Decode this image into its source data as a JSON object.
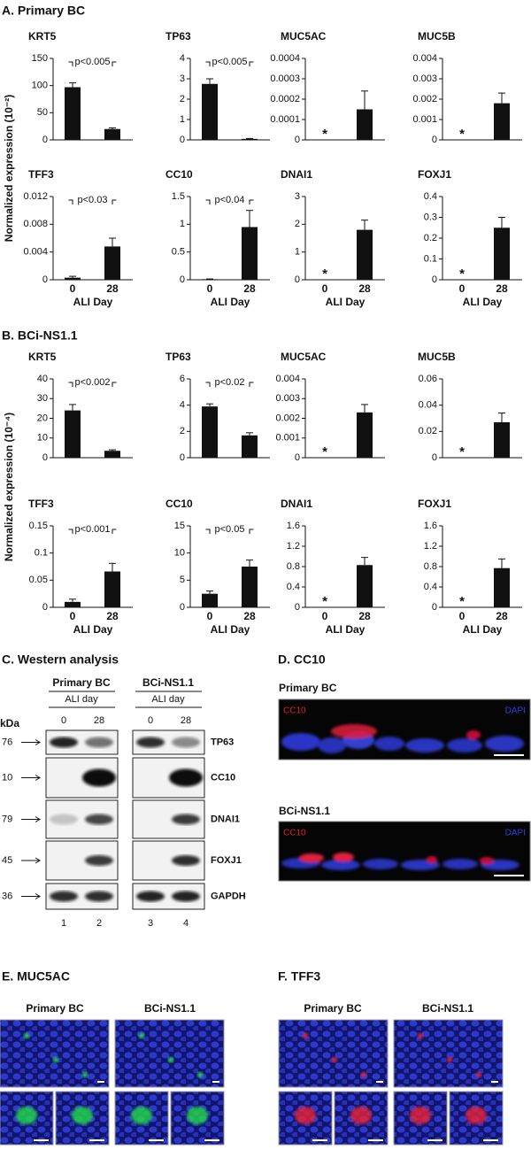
{
  "chart_data": [
    {
      "type": "bar",
      "title": "KRT5",
      "categories": [
        null,
        null
      ],
      "values": [
        97,
        20
      ],
      "errors": [
        8,
        2
      ],
      "ylim": [
        0,
        150
      ],
      "yticks": [
        0,
        50,
        100,
        150
      ],
      "color": "#111111",
      "bracket_label": "p<0.005"
    },
    {
      "type": "bar",
      "title": "TP63",
      "categories": [
        null,
        null
      ],
      "values": [
        2.75,
        0.05
      ],
      "errors": [
        0.25,
        0.02
      ],
      "ylim": [
        0,
        4
      ],
      "yticks": [
        0,
        1,
        2,
        3,
        4
      ],
      "color": "#111111",
      "bracket_label": "p<0.005"
    },
    {
      "type": "bar",
      "title": "MUC5AC",
      "categories": [
        null,
        null
      ],
      "values": [
        0,
        0.00015
      ],
      "errors": [
        0,
        9e-05
      ],
      "ylim": [
        0,
        0.0004
      ],
      "yticks": [
        0,
        0.0001,
        0.0002,
        0.0003,
        0.0004
      ],
      "color": "#111111",
      "star_label": "*"
    },
    {
      "type": "bar",
      "title": "MUC5B",
      "categories": [
        null,
        null
      ],
      "values": [
        0,
        0.0018
      ],
      "errors": [
        0,
        0.0005
      ],
      "ylim": [
        0,
        0.004
      ],
      "yticks": [
        0,
        0.001,
        0.002,
        0.003,
        0.004
      ],
      "color": "#111111",
      "star_label": "*"
    },
    {
      "type": "bar",
      "title": "TFF3",
      "categories": [
        "0",
        "28"
      ],
      "xlabel": "ALI Day",
      "values": [
        0.0003,
        0.0048
      ],
      "errors": [
        0.0002,
        0.0012
      ],
      "ylim": [
        0,
        0.012
      ],
      "yticks": [
        0,
        0.004,
        0.008,
        0.012
      ],
      "color": "#111111",
      "bracket_label": "p<0.03"
    },
    {
      "type": "bar",
      "title": "CC10",
      "categories": [
        "0",
        "28"
      ],
      "xlabel": "ALI Day",
      "values": [
        0.01,
        0.95
      ],
      "errors": [
        0.005,
        0.3
      ],
      "ylim": [
        0,
        1.5
      ],
      "yticks": [
        0,
        0.5,
        1,
        1.5
      ],
      "color": "#111111",
      "bracket_label": "p<0.04"
    },
    {
      "type": "bar",
      "title": "DNAI1",
      "categories": [
        "0",
        "28"
      ],
      "xlabel": "ALI Day",
      "values": [
        0,
        1.8
      ],
      "errors": [
        0,
        0.35
      ],
      "ylim": [
        0,
        3
      ],
      "yticks": [
        0,
        1,
        2,
        3
      ],
      "color": "#111111",
      "star_label": "*"
    },
    {
      "type": "bar",
      "title": "FOXJ1",
      "categories": [
        "0",
        "28"
      ],
      "xlabel": "ALI Day",
      "values": [
        0,
        0.25
      ],
      "errors": [
        0,
        0.05
      ],
      "ylim": [
        0,
        0.4
      ],
      "yticks": [
        0,
        0.1,
        0.2,
        0.3,
        0.4
      ],
      "color": "#111111",
      "star_label": "*"
    },
    {
      "type": "bar",
      "title": "KRT5",
      "categories": [
        null,
        null
      ],
      "values": [
        24,
        3.5
      ],
      "errors": [
        3,
        0.5
      ],
      "ylim": [
        0,
        40
      ],
      "yticks": [
        0,
        10,
        20,
        30,
        40
      ],
      "color": "#111111",
      "bracket_label": "p<0.002"
    },
    {
      "type": "bar",
      "title": "TP63",
      "categories": [
        null,
        null
      ],
      "values": [
        3.9,
        1.7
      ],
      "errors": [
        0.2,
        0.2
      ],
      "ylim": [
        0,
        6
      ],
      "yticks": [
        0,
        2,
        4,
        6
      ],
      "color": "#111111",
      "bracket_label": "p<0.02"
    },
    {
      "type": "bar",
      "title": "MUC5AC",
      "categories": [
        null,
        null
      ],
      "values": [
        0,
        0.0023
      ],
      "errors": [
        0,
        0.0004
      ],
      "ylim": [
        0,
        0.004
      ],
      "yticks": [
        0,
        0.001,
        0.002,
        0.003,
        0.004
      ],
      "color": "#111111",
      "star_label": "*"
    },
    {
      "type": "bar",
      "title": "MUC5B",
      "categories": [
        null,
        null
      ],
      "values": [
        0,
        0.027
      ],
      "errors": [
        0,
        0.007
      ],
      "ylim": [
        0,
        0.06
      ],
      "yticks": [
        0,
        0.02,
        0.04,
        0.06
      ],
      "color": "#111111",
      "star_label": "*"
    },
    {
      "type": "bar",
      "title": "TFF3",
      "categories": [
        "0",
        "28"
      ],
      "xlabel": "ALI Day",
      "values": [
        0.01,
        0.066
      ],
      "errors": [
        0.005,
        0.015
      ],
      "ylim": [
        0,
        0.15
      ],
      "yticks": [
        0,
        0.05,
        0.1,
        0.15
      ],
      "color": "#111111",
      "bracket_label": "p<0.001"
    },
    {
      "type": "bar",
      "title": "CC10",
      "categories": [
        "0",
        "28"
      ],
      "xlabel": "ALI Day",
      "values": [
        2.5,
        7.5
      ],
      "errors": [
        0.5,
        1.2
      ],
      "ylim": [
        0,
        15
      ],
      "yticks": [
        0,
        5,
        10,
        15
      ],
      "color": "#111111",
      "bracket_label": "p<0.05"
    },
    {
      "type": "bar",
      "title": "DNAI1",
      "categories": [
        "0",
        "28"
      ],
      "xlabel": "ALI Day",
      "values": [
        0,
        0.83
      ],
      "errors": [
        0,
        0.15
      ],
      "ylim": [
        0,
        1.6
      ],
      "yticks": [
        0,
        0.4,
        0.8,
        1.2,
        1.6
      ],
      "color": "#111111",
      "star_label": "*"
    },
    {
      "type": "bar",
      "title": "FOXJ1",
      "categories": [
        "0",
        "28"
      ],
      "xlabel": "ALI Day",
      "values": [
        0,
        0.77
      ],
      "errors": [
        0,
        0.18
      ],
      "ylim": [
        0,
        1.6
      ],
      "yticks": [
        0,
        0.4,
        0.8,
        1.2,
        1.6
      ],
      "color": "#111111",
      "star_label": "*"
    }
  ],
  "panels": [
    {
      "title": "A. Primary BC",
      "ylabel": "Normalized expression (10⁻²)"
    },
    {
      "title": "B. BCi-NS1.1",
      "ylabel": "Normalized expression (10⁻⁴)"
    }
  ],
  "western": {
    "title": "C. Western analysis",
    "kda_label": "kDa",
    "groups": [
      {
        "name": "Primary BC",
        "sublabel": "ALI day",
        "lanes": [
          "0",
          "28"
        ],
        "numbers": [
          "1",
          "2"
        ]
      },
      {
        "name": "BCi-NS1.1",
        "sublabel": "ALI day",
        "lanes": [
          "0",
          "28"
        ],
        "numbers": [
          "3",
          "4"
        ]
      }
    ],
    "markers": [
      "76",
      "10",
      "79",
      "45",
      "36"
    ],
    "proteins": [
      "TP63",
      "CC10",
      "DNAI1",
      "FOXJ1",
      "GAPDH"
    ]
  },
  "cc10": {
    "title": "D. CC10",
    "images": [
      {
        "label": "Primary BC",
        "stain1": "CC10",
        "stain2": "DAPI"
      },
      {
        "label": "BCi-NS1.1",
        "stain1": "CC10",
        "stain2": "DAPI"
      }
    ]
  },
  "muc5ac": {
    "title": "E. MUC5AC",
    "images": [
      "Primary BC",
      "BCi-NS1.1"
    ]
  },
  "tff3": {
    "title": "F. TFF3",
    "images": [
      "Primary BC",
      "BCi-NS1.1"
    ]
  }
}
